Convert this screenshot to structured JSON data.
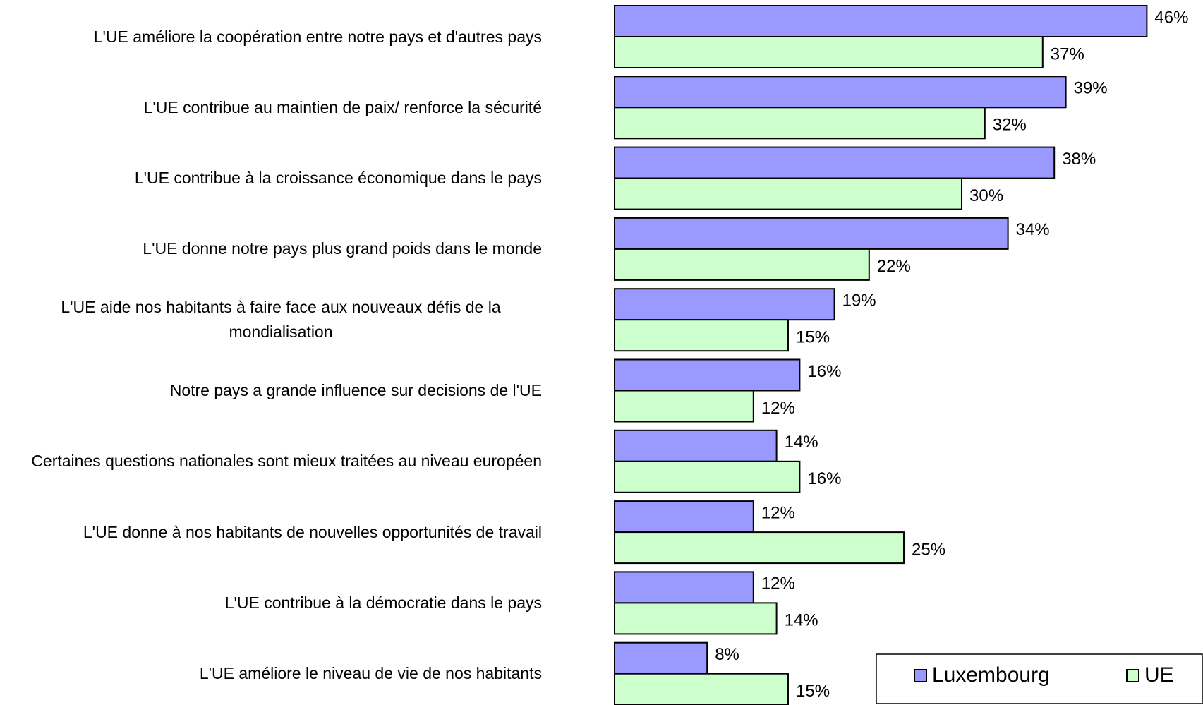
{
  "chart_data": {
    "type": "hbar",
    "categories": [
      "L'UE améliore la coopération entre notre pays et d'autres pays",
      "L'UE contribue au maintien de paix/ renforce la sécurité",
      "L'UE contribue à la croissance économique dans le pays",
      "L'UE donne notre pays plus grand poids dans le monde",
      "L'UE aide nos habitants à faire face aux nouveaux défis de la mondialisation",
      "Notre pays a grande influence sur decisions de l'UE",
      "Certaines questions nationales sont mieux traitées au niveau européen",
      "L'UE donne à nos habitants de nouvelles opportunités de travail",
      "L'UE contribue à la démocratie dans le pays",
      "L'UE améliore le niveau de vie de nos habitants"
    ],
    "series": [
      {
        "name": "Luxembourg",
        "color": "#9999ff",
        "values": [
          46,
          39,
          38,
          34,
          19,
          16,
          14,
          12,
          12,
          8
        ],
        "value_labels": [
          "46%",
          "39%",
          "38%",
          "34%",
          "19%",
          "16%",
          "14%",
          "12%",
          "12%",
          "8%"
        ]
      },
      {
        "name": "UE",
        "color": "#ccffcc",
        "values": [
          37,
          32,
          30,
          22,
          15,
          12,
          16,
          25,
          14,
          15
        ],
        "value_labels": [
          "37%",
          "32%",
          "30%",
          "22%",
          "15%",
          "12%",
          "16%",
          "25%",
          "14%",
          "15%"
        ]
      }
    ],
    "xlim": [
      0,
      50
    ],
    "legend": "bottom-right"
  }
}
